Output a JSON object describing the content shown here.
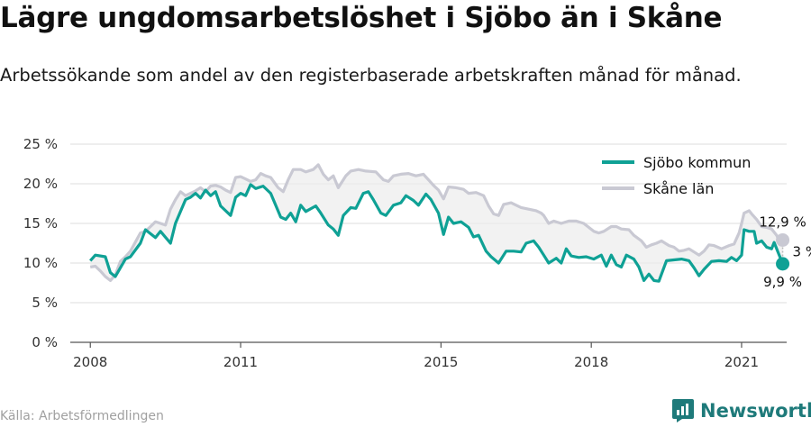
{
  "title": "Lägre ungdomsarbetslöshet i Sjöbo än i Skåne",
  "subtitle": "Arbetssökande som andel av den registerbaserade arbetskraften månad för månad.",
  "source": "Källa: Arbetsförmedlingen",
  "brand": "Newsworthy",
  "colors": {
    "sjobo": "#0fa195",
    "skane": "#c9c9d3",
    "fill": "#ececec",
    "grid": "#dddddd",
    "brand": "#1e7a7a"
  },
  "chart_data": {
    "type": "line",
    "title": "Lägre ungdomsarbetslöshet i Sjöbo än i Skåne",
    "xlabel": "",
    "ylabel": "",
    "xlim": [
      2007.6,
      2021.9
    ],
    "ylim": [
      0,
      25
    ],
    "yticks": [
      0,
      5,
      10,
      15,
      20,
      25
    ],
    "ytick_labels": [
      "0 %",
      "5 %",
      "10 %",
      "15 %",
      "20 %",
      "25 %"
    ],
    "xticks": [
      2008,
      2011,
      2015,
      2018,
      2021
    ],
    "xtick_labels": [
      "2008",
      "2011",
      "2015",
      "2018",
      "2021"
    ],
    "grid": true,
    "legend": "top-right",
    "series": [
      {
        "name": "Sjöbo kommun",
        "points": [
          [
            2008.0,
            10.3
          ],
          [
            2008.1,
            11.0
          ],
          [
            2008.3,
            10.8
          ],
          [
            2008.4,
            8.8
          ],
          [
            2008.5,
            8.3
          ],
          [
            2008.7,
            10.5
          ],
          [
            2008.8,
            10.8
          ],
          [
            2009.0,
            12.5
          ],
          [
            2009.1,
            14.2
          ],
          [
            2009.3,
            13.2
          ],
          [
            2009.4,
            14.0
          ],
          [
            2009.6,
            12.5
          ],
          [
            2009.7,
            15.0
          ],
          [
            2009.9,
            18.0
          ],
          [
            2010.0,
            18.3
          ],
          [
            2010.1,
            18.8
          ],
          [
            2010.2,
            18.2
          ],
          [
            2010.3,
            19.2
          ],
          [
            2010.4,
            18.5
          ],
          [
            2010.5,
            19.0
          ],
          [
            2010.6,
            17.2
          ],
          [
            2010.8,
            16.0
          ],
          [
            2010.9,
            18.3
          ],
          [
            2011.0,
            18.8
          ],
          [
            2011.1,
            18.5
          ],
          [
            2011.2,
            19.9
          ],
          [
            2011.3,
            19.4
          ],
          [
            2011.45,
            19.7
          ],
          [
            2011.6,
            18.8
          ],
          [
            2011.8,
            15.8
          ],
          [
            2011.9,
            15.5
          ],
          [
            2012.0,
            16.3
          ],
          [
            2012.1,
            15.2
          ],
          [
            2012.2,
            17.3
          ],
          [
            2012.3,
            16.5
          ],
          [
            2012.5,
            17.2
          ],
          [
            2012.6,
            16.3
          ],
          [
            2012.75,
            14.8
          ],
          [
            2012.85,
            14.3
          ],
          [
            2012.95,
            13.5
          ],
          [
            2013.05,
            16.0
          ],
          [
            2013.2,
            17.0
          ],
          [
            2013.3,
            16.9
          ],
          [
            2013.45,
            18.8
          ],
          [
            2013.55,
            19.0
          ],
          [
            2013.65,
            18.0
          ],
          [
            2013.8,
            16.3
          ],
          [
            2013.9,
            16.0
          ],
          [
            2014.05,
            17.3
          ],
          [
            2014.2,
            17.6
          ],
          [
            2014.3,
            18.5
          ],
          [
            2014.45,
            17.9
          ],
          [
            2014.55,
            17.3
          ],
          [
            2014.7,
            18.7
          ],
          [
            2014.8,
            18.0
          ],
          [
            2014.95,
            16.3
          ],
          [
            2015.05,
            13.6
          ],
          [
            2015.15,
            15.8
          ],
          [
            2015.25,
            15.0
          ],
          [
            2015.4,
            15.2
          ],
          [
            2015.55,
            14.5
          ],
          [
            2015.65,
            13.3
          ],
          [
            2015.75,
            13.5
          ],
          [
            2015.9,
            11.5
          ],
          [
            2016.0,
            10.8
          ],
          [
            2016.15,
            10.0
          ],
          [
            2016.3,
            11.5
          ],
          [
            2016.45,
            11.5
          ],
          [
            2016.6,
            11.4
          ],
          [
            2016.7,
            12.5
          ],
          [
            2016.85,
            12.8
          ],
          [
            2016.95,
            12.0
          ],
          [
            2017.05,
            11.0
          ],
          [
            2017.15,
            10.0
          ],
          [
            2017.3,
            10.6
          ],
          [
            2017.4,
            10.0
          ],
          [
            2017.5,
            11.8
          ],
          [
            2017.6,
            10.9
          ],
          [
            2017.75,
            10.7
          ],
          [
            2017.9,
            10.8
          ],
          [
            2018.05,
            10.5
          ],
          [
            2018.2,
            11.0
          ],
          [
            2018.3,
            9.6
          ],
          [
            2018.4,
            11.0
          ],
          [
            2018.5,
            9.8
          ],
          [
            2018.6,
            9.5
          ],
          [
            2018.7,
            11.0
          ],
          [
            2018.85,
            10.5
          ],
          [
            2018.95,
            9.5
          ],
          [
            2019.05,
            7.8
          ],
          [
            2019.15,
            8.6
          ],
          [
            2019.25,
            7.8
          ],
          [
            2019.35,
            7.7
          ],
          [
            2019.5,
            10.3
          ],
          [
            2019.65,
            10.4
          ],
          [
            2019.8,
            10.5
          ],
          [
            2019.95,
            10.3
          ],
          [
            2020.05,
            9.4
          ],
          [
            2020.15,
            8.4
          ],
          [
            2020.25,
            9.2
          ],
          [
            2020.4,
            10.2
          ],
          [
            2020.55,
            10.3
          ],
          [
            2020.7,
            10.2
          ],
          [
            2020.8,
            10.7
          ],
          [
            2020.9,
            10.3
          ],
          [
            2021.0,
            11.0
          ],
          [
            2021.05,
            14.2
          ],
          [
            2021.15,
            14.0
          ],
          [
            2021.25,
            14.0
          ],
          [
            2021.3,
            12.5
          ],
          [
            2021.4,
            12.8
          ],
          [
            2021.5,
            12.0
          ],
          [
            2021.6,
            11.8
          ],
          [
            2021.65,
            12.6
          ],
          [
            2021.75,
            11.0
          ],
          [
            2021.82,
            9.9
          ]
        ]
      },
      {
        "name": "Skåne län",
        "points": [
          [
            2008.0,
            9.5
          ],
          [
            2008.1,
            9.6
          ],
          [
            2008.2,
            9.0
          ],
          [
            2008.3,
            8.3
          ],
          [
            2008.4,
            7.8
          ],
          [
            2008.5,
            8.5
          ],
          [
            2008.6,
            10.2
          ],
          [
            2008.7,
            10.8
          ],
          [
            2008.8,
            11.5
          ],
          [
            2009.0,
            13.8
          ],
          [
            2009.1,
            14.0
          ],
          [
            2009.2,
            14.6
          ],
          [
            2009.3,
            15.2
          ],
          [
            2009.4,
            15.0
          ],
          [
            2009.5,
            14.8
          ],
          [
            2009.6,
            16.8
          ],
          [
            2009.7,
            18.0
          ],
          [
            2009.8,
            19.0
          ],
          [
            2009.9,
            18.5
          ],
          [
            2010.0,
            18.8
          ],
          [
            2010.1,
            19.1
          ],
          [
            2010.2,
            19.5
          ],
          [
            2010.3,
            19.0
          ],
          [
            2010.4,
            19.7
          ],
          [
            2010.5,
            19.8
          ],
          [
            2010.6,
            19.6
          ],
          [
            2010.7,
            19.2
          ],
          [
            2010.8,
            18.9
          ],
          [
            2010.9,
            20.8
          ],
          [
            2011.0,
            20.9
          ],
          [
            2011.1,
            20.6
          ],
          [
            2011.2,
            20.3
          ],
          [
            2011.3,
            20.5
          ],
          [
            2011.4,
            21.3
          ],
          [
            2011.5,
            21.0
          ],
          [
            2011.6,
            20.8
          ],
          [
            2011.75,
            19.5
          ],
          [
            2011.85,
            19.0
          ],
          [
            2011.95,
            20.5
          ],
          [
            2012.05,
            21.8
          ],
          [
            2012.2,
            21.8
          ],
          [
            2012.3,
            21.5
          ],
          [
            2012.45,
            21.8
          ],
          [
            2012.55,
            22.4
          ],
          [
            2012.65,
            21.2
          ],
          [
            2012.75,
            20.5
          ],
          [
            2012.85,
            21.0
          ],
          [
            2012.95,
            19.5
          ],
          [
            2013.1,
            21.0
          ],
          [
            2013.2,
            21.6
          ],
          [
            2013.35,
            21.8
          ],
          [
            2013.5,
            21.6
          ],
          [
            2013.7,
            21.5
          ],
          [
            2013.85,
            20.5
          ],
          [
            2013.95,
            20.3
          ],
          [
            2014.05,
            21.0
          ],
          [
            2014.2,
            21.2
          ],
          [
            2014.35,
            21.3
          ],
          [
            2014.5,
            21.0
          ],
          [
            2014.65,
            21.2
          ],
          [
            2014.75,
            20.5
          ],
          [
            2014.85,
            19.8
          ],
          [
            2014.95,
            19.2
          ],
          [
            2015.05,
            18.1
          ],
          [
            2015.15,
            19.6
          ],
          [
            2015.3,
            19.5
          ],
          [
            2015.45,
            19.3
          ],
          [
            2015.55,
            18.8
          ],
          [
            2015.7,
            18.9
          ],
          [
            2015.85,
            18.5
          ],
          [
            2015.95,
            17.2
          ],
          [
            2016.05,
            16.2
          ],
          [
            2016.15,
            16.0
          ],
          [
            2016.25,
            17.4
          ],
          [
            2016.4,
            17.6
          ],
          [
            2016.5,
            17.3
          ],
          [
            2016.6,
            17.0
          ],
          [
            2016.75,
            16.8
          ],
          [
            2016.9,
            16.6
          ],
          [
            2017.0,
            16.3
          ],
          [
            2017.05,
            16.0
          ],
          [
            2017.15,
            15.0
          ],
          [
            2017.25,
            15.3
          ],
          [
            2017.4,
            15.0
          ],
          [
            2017.55,
            15.3
          ],
          [
            2017.7,
            15.3
          ],
          [
            2017.85,
            15.0
          ],
          [
            2017.95,
            14.5
          ],
          [
            2018.05,
            14.0
          ],
          [
            2018.15,
            13.8
          ],
          [
            2018.25,
            14.0
          ],
          [
            2018.4,
            14.6
          ],
          [
            2018.5,
            14.6
          ],
          [
            2018.6,
            14.3
          ],
          [
            2018.75,
            14.2
          ],
          [
            2018.85,
            13.5
          ],
          [
            2019.0,
            12.8
          ],
          [
            2019.1,
            12.0
          ],
          [
            2019.2,
            12.3
          ],
          [
            2019.3,
            12.5
          ],
          [
            2019.4,
            12.8
          ],
          [
            2019.55,
            12.2
          ],
          [
            2019.65,
            12.0
          ],
          [
            2019.75,
            11.5
          ],
          [
            2019.85,
            11.6
          ],
          [
            2019.95,
            11.8
          ],
          [
            2020.05,
            11.4
          ],
          [
            2020.15,
            11.0
          ],
          [
            2020.25,
            11.5
          ],
          [
            2020.35,
            12.3
          ],
          [
            2020.45,
            12.2
          ],
          [
            2020.6,
            11.8
          ],
          [
            2020.75,
            12.2
          ],
          [
            2020.85,
            12.4
          ],
          [
            2020.95,
            13.8
          ],
          [
            2021.0,
            15.0
          ],
          [
            2021.05,
            16.3
          ],
          [
            2021.15,
            16.6
          ],
          [
            2021.2,
            16.2
          ],
          [
            2021.3,
            15.5
          ],
          [
            2021.4,
            14.6
          ],
          [
            2021.5,
            14.5
          ],
          [
            2021.6,
            14.3
          ],
          [
            2021.7,
            13.5
          ],
          [
            2021.75,
            12.8
          ],
          [
            2021.82,
            12.9
          ]
        ]
      }
    ],
    "annotations": [
      {
        "text": "12,9 %",
        "target": "Skåne län",
        "x": 2021.82,
        "y": 12.9
      },
      {
        "text": "9,9 %",
        "target": "Sjöbo kommun",
        "x": 2021.82,
        "y": 9.9
      },
      {
        "text": "3 %",
        "kind": "difference"
      }
    ]
  }
}
